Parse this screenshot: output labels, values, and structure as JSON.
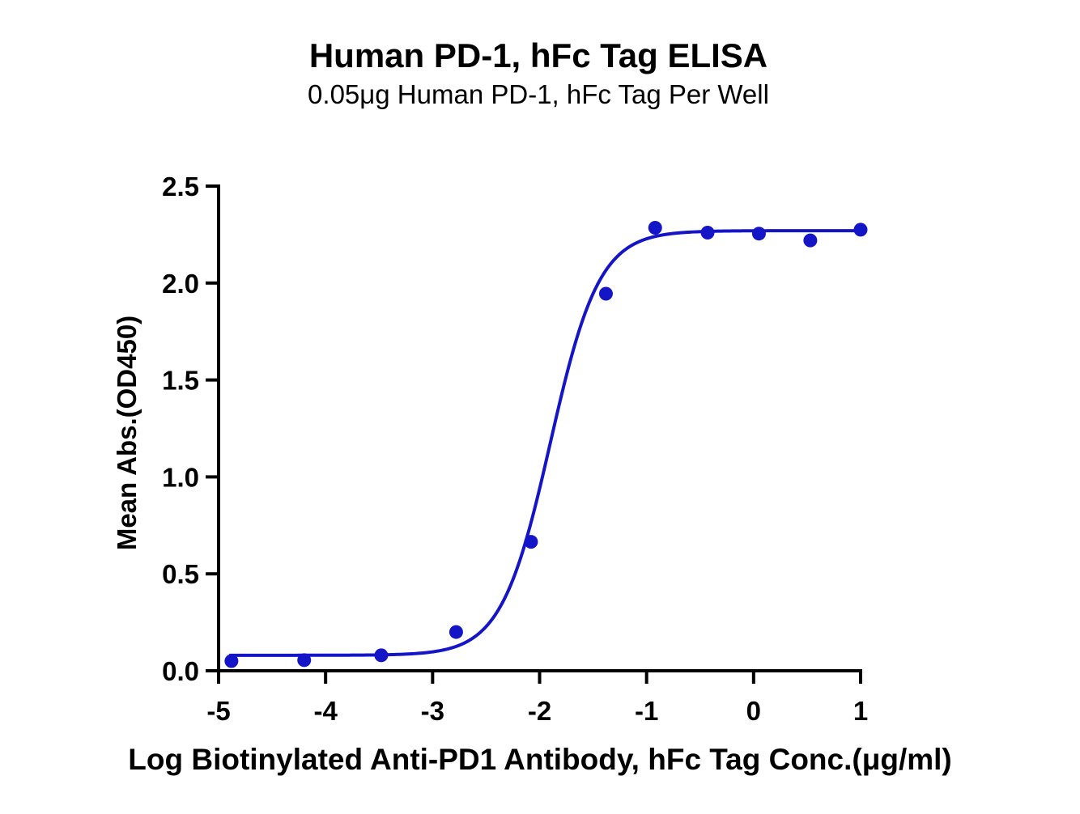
{
  "chart_data": {
    "type": "scatter",
    "title": "Human PD-1, hFc Tag ELISA",
    "subtitle": "0.05μg Human PD-1, hFc Tag Per Well",
    "xlabel": "Log Biotinylated Anti-PD1 Antibody, hFc Tag Conc.(μg/ml)",
    "ylabel": "Mean Abs.(OD450)",
    "xlim": [
      -5,
      1
    ],
    "ylim": [
      0,
      2.5
    ],
    "x_ticks": [
      -5,
      -4,
      -3,
      -2,
      -1,
      0,
      1
    ],
    "x_tick_labels": [
      "-5",
      "-4",
      "-3",
      "-2",
      "-1",
      "0",
      "1"
    ],
    "y_ticks": [
      0,
      0.5,
      1.0,
      1.5,
      2.0,
      2.5
    ],
    "y_tick_labels": [
      "0.0",
      "0.5",
      "1.0",
      "1.5",
      "2.0",
      "2.5"
    ],
    "grid": false,
    "legend": "none",
    "series_color": "#1515c8",
    "series": [
      {
        "points": [
          {
            "x": -4.88,
            "y": 0.05
          },
          {
            "x": -4.2,
            "y": 0.055
          },
          {
            "x": -3.48,
            "y": 0.08
          },
          {
            "x": -2.78,
            "y": 0.2
          },
          {
            "x": -2.08,
            "y": 0.665
          },
          {
            "x": -1.38,
            "y": 1.945
          },
          {
            "x": -0.92,
            "y": 2.285
          },
          {
            "x": -0.43,
            "y": 2.26
          },
          {
            "x": 0.05,
            "y": 2.255
          },
          {
            "x": 0.53,
            "y": 2.22
          },
          {
            "x": 1.0,
            "y": 2.275
          }
        ],
        "fit": {
          "model": "4PL",
          "bottom": 0.08,
          "top": 2.27,
          "logEC50": -1.9,
          "hill": 1.9,
          "x_range": [
            -4.9,
            1.0
          ]
        }
      }
    ]
  }
}
